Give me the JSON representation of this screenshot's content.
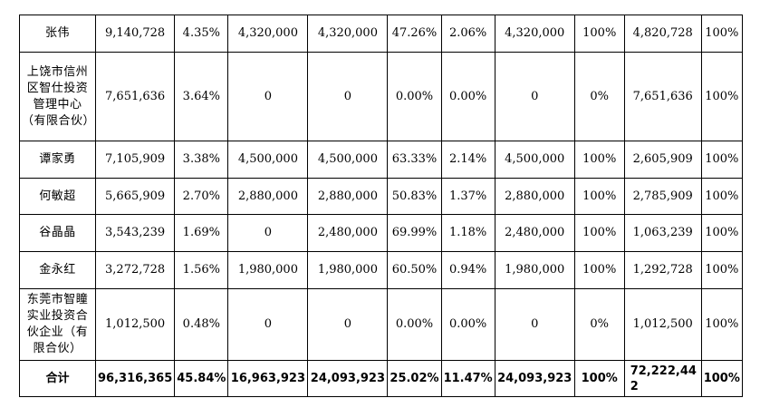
{
  "rows": [
    {
      "name": "张伟",
      "c1": "9,140,728",
      "c2": "4.35%",
      "c3": "4,320,000",
      "c4": "4,320,000",
      "c5": "47.26%",
      "c6": "2.06%",
      "c7": "4,320,000",
      "c8": "100%",
      "c9": "4,820,728",
      "c10": "100%"
    },
    {
      "name": "上饶市信州区智仕投资管理中心（有限合伙）",
      "c1": "7,651,636",
      "c2": "3.64%",
      "c3": "0",
      "c4": "0",
      "c5": "0.00%",
      "c6": "0.00%",
      "c7": "0",
      "c8": "0%",
      "c9": "7,651,636",
      "c10": "100%"
    },
    {
      "name": "谭家勇",
      "c1": "7,105,909",
      "c2": "3.38%",
      "c3": "4,500,000",
      "c4": "4,500,000",
      "c5": "63.33%",
      "c6": "2.14%",
      "c7": "4,500,000",
      "c8": "100%",
      "c9": "2,605,909",
      "c10": "100%"
    },
    {
      "name": "何敏超",
      "c1": "5,665,909",
      "c2": "2.70%",
      "c3": "2,880,000",
      "c4": "2,880,000",
      "c5": "50.83%",
      "c6": "1.37%",
      "c7": "2,880,000",
      "c8": "100%",
      "c9": "2,785,909",
      "c10": "100%"
    },
    {
      "name": "谷晶晶",
      "c1": "3,543,239",
      "c2": "1.69%",
      "c3": "0",
      "c4": "2,480,000",
      "c5": "69.99%",
      "c6": "1.18%",
      "c7": "2,480,000",
      "c8": "100%",
      "c9": "1,063,239",
      "c10": "100%"
    },
    {
      "name": "金永红",
      "c1": "3,272,728",
      "c2": "1.56%",
      "c3": "1,980,000",
      "c4": "1,980,000",
      "c5": "60.50%",
      "c6": "0.94%",
      "c7": "1,980,000",
      "c8": "100%",
      "c9": "1,292,728",
      "c10": "100%"
    },
    {
      "name": "东莞市智瞳实业投资合伙企业（有限合伙）",
      "c1": "1,012,500",
      "c2": "0.48%",
      "c3": "0",
      "c4": "0",
      "c5": "0.00%",
      "c6": "0.00%",
      "c7": "0",
      "c8": "0%",
      "c9": "1,012,500",
      "c10": "100%"
    }
  ],
  "total": {
    "name": "合计",
    "c1": "96,316,365",
    "c2": "45.84%",
    "c3": "16,963,923",
    "c4": "24,093,923",
    "c5": "25.02%",
    "c6": "11.47%",
    "c7": "24,093,923",
    "c8": "100%",
    "c9": "72,222,442",
    "c10": "100%"
  }
}
